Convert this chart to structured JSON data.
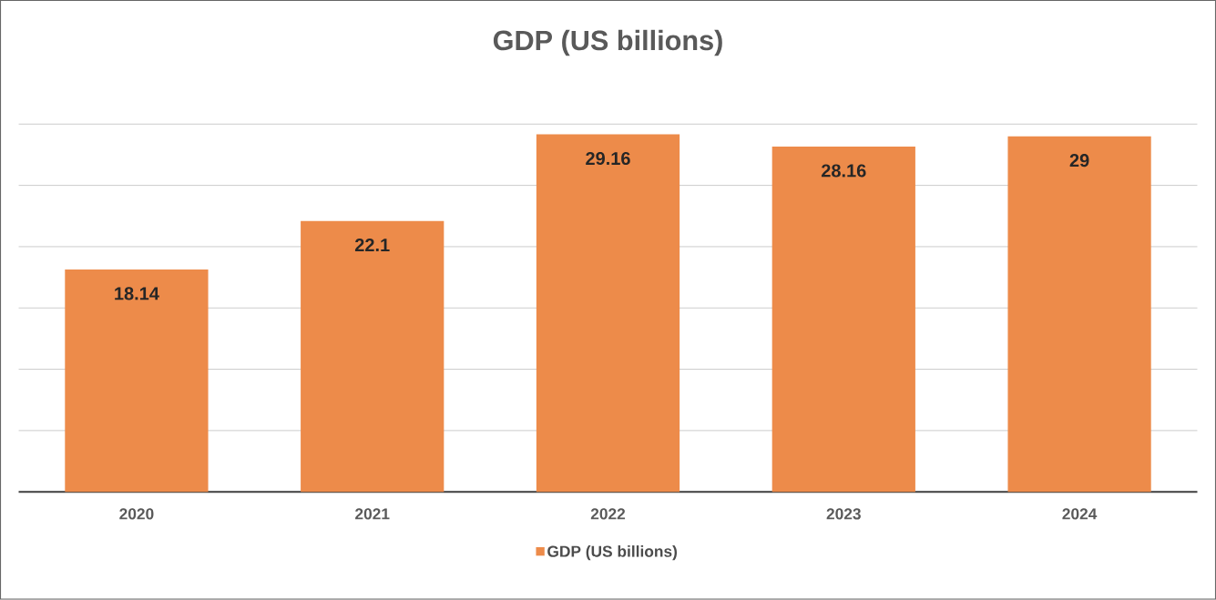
{
  "chart_data": {
    "type": "bar",
    "title": "GDP (US billions)",
    "categories": [
      "2020",
      "2021",
      "2022",
      "2023",
      "2024"
    ],
    "series": [
      {
        "name": "GDP (US billions)",
        "color": "#ed8b4a",
        "values": [
          18.14,
          22.1,
          29.16,
          28.16,
          29
        ]
      }
    ],
    "grid": "y",
    "legend": "bottom",
    "data_labels": true
  }
}
